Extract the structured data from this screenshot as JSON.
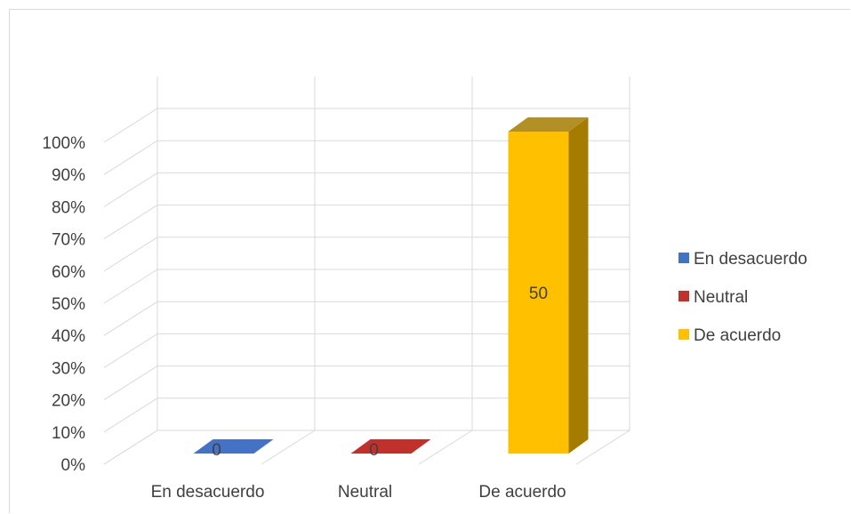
{
  "chart_data": {
    "type": "bar",
    "categories": [
      "En desacuerdo",
      "Neutral",
      "De acuerdo"
    ],
    "series": [
      {
        "name": "En desacuerdo",
        "values": [
          0,
          null,
          null
        ],
        "labels": [
          "0",
          "",
          ""
        ],
        "color": "#4472c4",
        "color_side": "#2f5597"
      },
      {
        "name": "Neutral",
        "values": [
          null,
          0,
          null
        ],
        "labels": [
          "",
          "0",
          ""
        ],
        "color": "#c0312c",
        "color_side": "#8e2420"
      },
      {
        "name": "De acuerdo",
        "values": [
          null,
          null,
          100
        ],
        "labels": [
          "",
          "",
          "50"
        ],
        "color": "#ffc000",
        "color_side": "#a57c00"
      }
    ],
    "yticks": [
      "0%",
      "10%",
      "20%",
      "30%",
      "40%",
      "50%",
      "60%",
      "70%",
      "80%",
      "90%",
      "100%"
    ],
    "ylim": [
      0,
      100
    ],
    "grid": true,
    "legend": "right",
    "three_d": true
  }
}
